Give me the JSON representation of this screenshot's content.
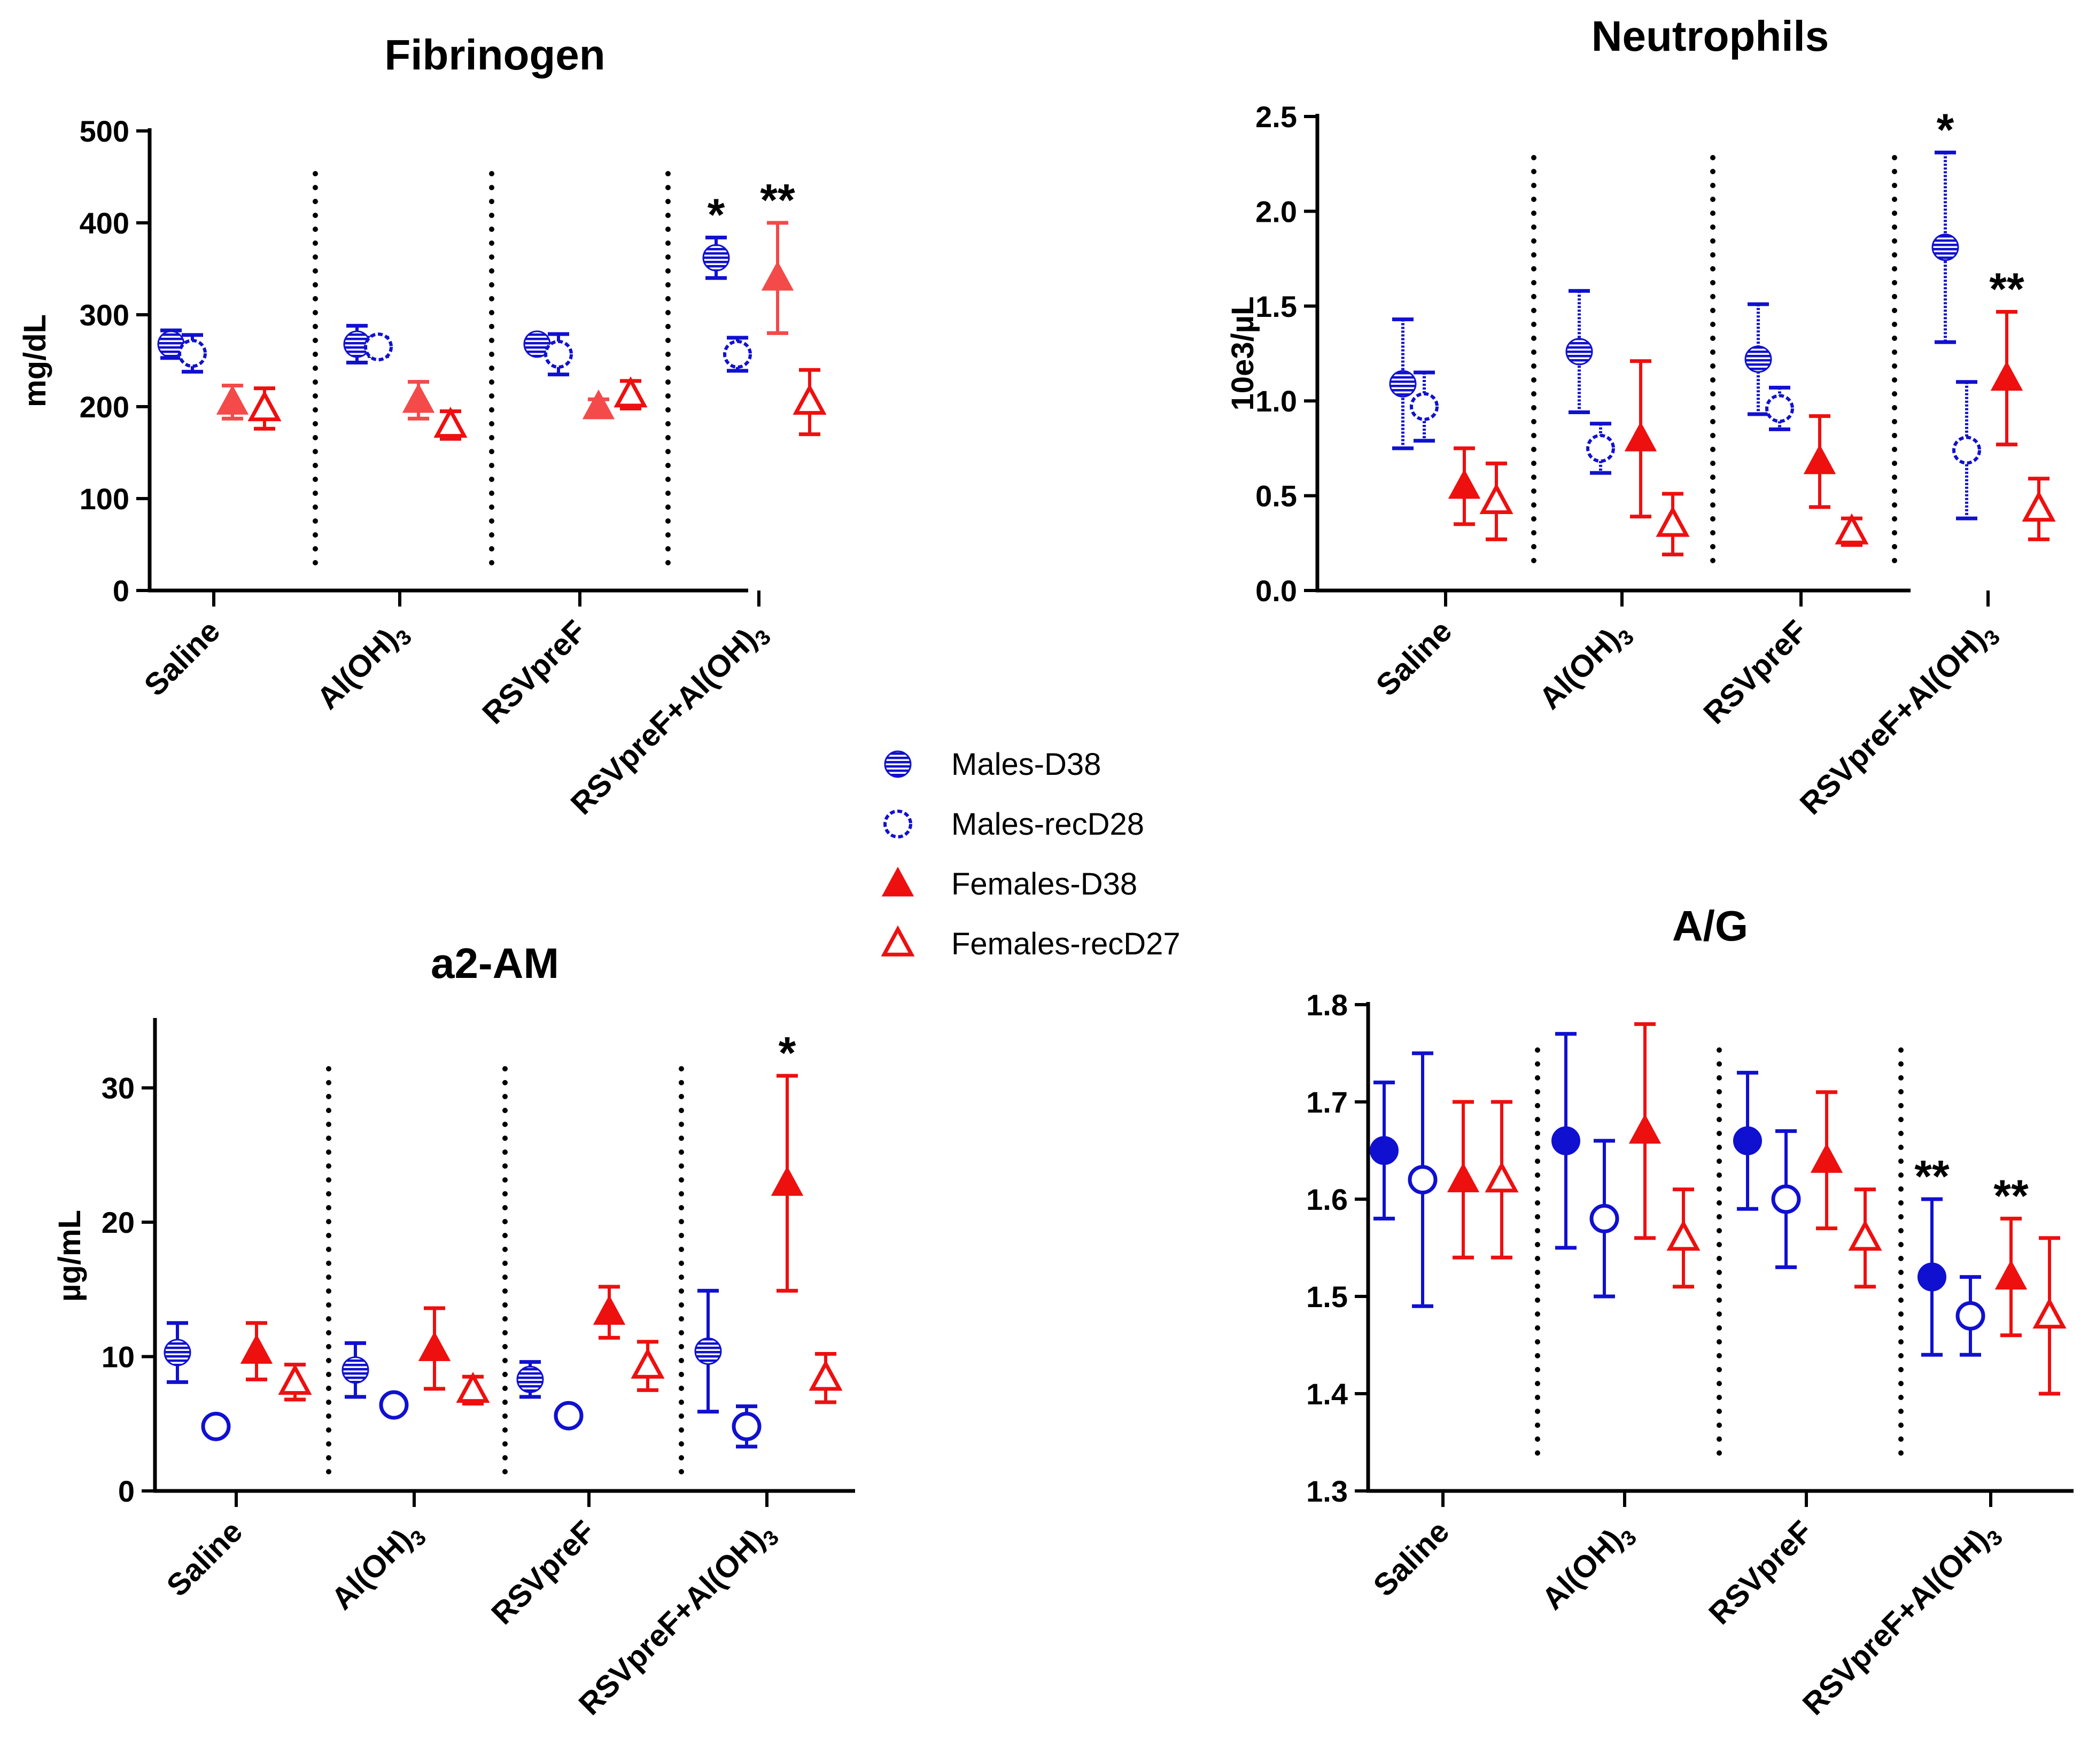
{
  "groups": [
    "Males-D38",
    "Males-recD28",
    "Females-D38",
    "Females-recD27"
  ],
  "colors": {
    "blue": "#1010d0",
    "red": "#ee0f0f",
    "lightred": "#f44a4a"
  },
  "legend": [
    {
      "label": "Males-D38",
      "marker": "circle-hatched",
      "color": "#1010d0"
    },
    {
      "label": "Males-recD28",
      "marker": "circle-open-dashed",
      "color": "#1010d0"
    },
    {
      "label": "Females-D38",
      "marker": "triangle-filled",
      "color": "#ee0f0f"
    },
    {
      "label": "Females-recD27",
      "marker": "triangle-open",
      "color": "#ee0f0f"
    }
  ],
  "chart_data": [
    {
      "type": "scatter",
      "title": "Fibrinogen",
      "ylabel": "mg/dL",
      "ylim": [
        0,
        500
      ],
      "yticks": [
        "0",
        "100",
        "200",
        "300",
        "400",
        "500"
      ],
      "categories": [
        "Saline",
        "Al(OH)3",
        "RSVpreF",
        "RSVpreF+Al(OH)3"
      ],
      "series": [
        {
          "name": "Males-D38",
          "values": [
            268,
            268,
            268,
            362
          ],
          "errors": [
            15,
            20,
            5,
            22
          ],
          "style": "circle-hatched",
          "color": "#1010d0"
        },
        {
          "name": "Males-recD28",
          "values": [
            258,
            265,
            257,
            257
          ],
          "errors": [
            20,
            10,
            22,
            18
          ],
          "style": "circle-open-dashed",
          "color": "#1010d0"
        },
        {
          "name": "Females-D38",
          "values": [
            205,
            207,
            200,
            340
          ],
          "errors": [
            18,
            20,
            8,
            60
          ],
          "style": "triangle-filled",
          "color": "#f44a4a"
        },
        {
          "name": "Females-recD27",
          "values": [
            198,
            180,
            213,
            205
          ],
          "errors": [
            22,
            15,
            15,
            35
          ],
          "style": "triangle-open",
          "color": "#ee0f0f"
        }
      ],
      "annotations": [
        {
          "text": "*",
          "category": "RSVpreF+Al(OH)3",
          "series": "Males-D38"
        },
        {
          "text": "**",
          "category": "RSVpreF+Al(OH)3",
          "series": "Females-D38"
        }
      ]
    },
    {
      "type": "scatter",
      "title": "Neutrophils",
      "ylabel": "10e3/µL",
      "ylim": [
        0,
        2.5
      ],
      "yticks": [
        "0.0",
        "0.5",
        "1.0",
        "1.5",
        "2.0",
        "2.5"
      ],
      "categories": [
        "Saline",
        "Al(OH)3",
        "RSVpreF",
        "RSVpreF+Al(OH)3"
      ],
      "series": [
        {
          "name": "Males-D38",
          "values": [
            1.09,
            1.26,
            1.22,
            1.81
          ],
          "errors": [
            0.34,
            0.32,
            0.29,
            0.5
          ],
          "style": "circle-hatched",
          "color": "#1010d0"
        },
        {
          "name": "Males-recD28",
          "values": [
            0.97,
            0.75,
            0.96,
            0.74
          ],
          "errors": [
            0.18,
            0.13,
            0.11,
            0.36
          ],
          "style": "circle-open-dashed",
          "color": "#1010d0"
        },
        {
          "name": "Females-D38",
          "values": [
            0.55,
            0.8,
            0.68,
            1.12
          ],
          "errors": [
            0.2,
            0.41,
            0.24,
            0.35
          ],
          "style": "triangle-filled",
          "color": "#ee0f0f"
        },
        {
          "name": "Females-recD27",
          "values": [
            0.47,
            0.35,
            0.31,
            0.43
          ],
          "errors": [
            0.2,
            0.16,
            0.07,
            0.16
          ],
          "style": "triangle-open",
          "color": "#ee0f0f"
        }
      ],
      "annotations": [
        {
          "text": "*",
          "category": "RSVpreF+Al(OH)3",
          "series": "Males-D38"
        },
        {
          "text": "**",
          "category": "RSVpreF+Al(OH)3",
          "series": "Females-D38"
        }
      ]
    },
    {
      "type": "scatter",
      "title": "a2-AM",
      "ylabel": "µg/mL",
      "ylim": [
        0,
        35
      ],
      "yticks": [
        "0",
        "10",
        "20",
        "30"
      ],
      "categories": [
        "Saline",
        "Al(OH)3",
        "RSVpreF",
        "RSVpreF+Al(OH)3"
      ],
      "series": [
        {
          "name": "Males-D38",
          "values": [
            10.3,
            9.0,
            8.3,
            10.4
          ],
          "errors": [
            2.2,
            2.0,
            1.3,
            4.5
          ],
          "style": "circle-hatched",
          "color": "#1010d0"
        },
        {
          "name": "Males-recD28",
          "values": [
            4.8,
            6.4,
            5.6,
            4.8
          ],
          "errors": [
            0.4,
            0.4,
            0.4,
            1.5
          ],
          "style": "circle-open",
          "color": "#1010d0"
        },
        {
          "name": "Females-D38",
          "values": [
            10.4,
            10.6,
            13.3,
            22.9
          ],
          "errors": [
            2.1,
            3.0,
            1.9,
            8.0
          ],
          "style": "triangle-filled",
          "color": "#ee0f0f"
        },
        {
          "name": "Females-recD27",
          "values": [
            8.1,
            7.5,
            9.3,
            8.4
          ],
          "errors": [
            1.3,
            1.0,
            1.8,
            1.8
          ],
          "style": "triangle-open",
          "color": "#ee0f0f"
        }
      ],
      "annotations": [
        {
          "text": "*",
          "category": "RSVpreF+Al(OH)3",
          "series": "Females-D38"
        }
      ]
    },
    {
      "type": "scatter",
      "title": "A/G",
      "ylabel": "",
      "ylim": [
        1.3,
        1.8
      ],
      "yticks": [
        "1.3",
        "1.4",
        "1.5",
        "1.6",
        "1.7",
        "1.8"
      ],
      "categories": [
        "Saline",
        "Al(OH)3",
        "RSVpreF",
        "RSVpreF+Al(OH)3"
      ],
      "series": [
        {
          "name": "Males-D38",
          "values": [
            1.65,
            1.66,
            1.66,
            1.52
          ],
          "errors": [
            0.07,
            0.11,
            0.07,
            0.08
          ],
          "style": "circle-filled",
          "color": "#1010d0"
        },
        {
          "name": "Males-recD28",
          "values": [
            1.62,
            1.58,
            1.6,
            1.48
          ],
          "errors": [
            0.13,
            0.08,
            0.07,
            0.04
          ],
          "style": "circle-open",
          "color": "#1010d0"
        },
        {
          "name": "Females-D38",
          "values": [
            1.62,
            1.67,
            1.64,
            1.52
          ],
          "errors": [
            0.08,
            0.11,
            0.07,
            0.06
          ],
          "style": "triangle-filled",
          "color": "#ee0f0f"
        },
        {
          "name": "Females-recD27",
          "values": [
            1.62,
            1.56,
            1.56,
            1.48
          ],
          "errors": [
            0.08,
            0.05,
            0.05,
            0.08
          ],
          "style": "triangle-open",
          "color": "#ee0f0f"
        }
      ],
      "annotations": [
        {
          "text": "**",
          "category": "RSVpreF+Al(OH)3",
          "series": "Males-D38"
        },
        {
          "text": "**",
          "category": "RSVpreF+Al(OH)3",
          "series": "Females-D38"
        }
      ]
    }
  ]
}
